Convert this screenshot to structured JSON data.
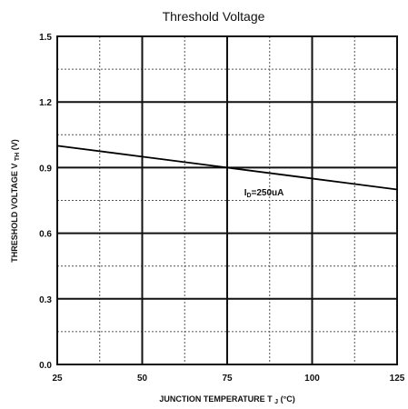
{
  "chart_data": {
    "type": "line",
    "title": "Threshold Voltage",
    "xlabel": {
      "main": "JUNCTION TEMPERATURE T",
      "sub": "J",
      "unit": "(°C)"
    },
    "ylabel": {
      "main": "THRESHOLD VOLTAGE V",
      "sub": "TH",
      "unit": "(V)"
    },
    "xlim": [
      25,
      125
    ],
    "ylim": [
      0.0,
      1.5
    ],
    "x_ticks": [
      25,
      50,
      75,
      100,
      125
    ],
    "x_tick_labels": [
      "25",
      "50",
      "75",
      "100",
      "125"
    ],
    "y_ticks": [
      0.0,
      0.3,
      0.6,
      0.9,
      1.2,
      1.5
    ],
    "y_tick_labels": [
      "0.0",
      "0.3",
      "0.6",
      "0.9",
      "1.2",
      "1.5"
    ],
    "grid": true,
    "series": [
      {
        "x": [
          25,
          50,
          75,
          100,
          125
        ],
        "y": [
          1.0,
          0.95,
          0.9,
          0.85,
          0.8
        ],
        "color": "#000000",
        "annotation": {
          "main": "I",
          "sub": "D",
          "rest": "=250uA",
          "x": 80,
          "y": 0.79
        }
      }
    ],
    "colors": {
      "axis": "#111111",
      "major_grid": "#111111",
      "minor_grid": "#555555",
      "line": "#000000"
    }
  }
}
